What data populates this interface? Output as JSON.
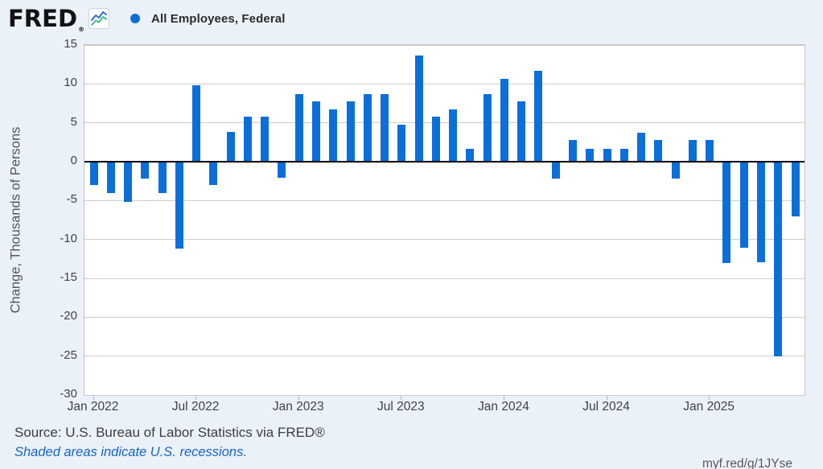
{
  "header": {
    "logo_text": "FRED",
    "logo_reg": "®",
    "legend_label": "All Employees, Federal"
  },
  "colors": {
    "series_blue": "#0c6fd9",
    "background": "#ebf1f9",
    "icon_line_blue": "#2a6fd4",
    "icon_line_green": "#44b789"
  },
  "chart_data": {
    "type": "bar",
    "title": "All Employees, Federal",
    "ylabel": "Change, Thousands of Persons",
    "ylim": [
      -30,
      15
    ],
    "yticks": [
      15,
      10,
      5,
      0,
      -5,
      -10,
      -15,
      -20,
      -25,
      -30
    ],
    "xticks": [
      "Jan 2022",
      "Jul 2022",
      "Jan 2023",
      "Jul 2023",
      "Jan 2024",
      "Jul 2024",
      "Jan 2025"
    ],
    "grid": true,
    "legend_position": "top",
    "bar_color": "#0c6fd9",
    "x": [
      "Jan 2022",
      "Feb 2022",
      "Mar 2022",
      "Apr 2022",
      "May 2022",
      "Jun 2022",
      "Jul 2022",
      "Aug 2022",
      "Sep 2022",
      "Oct 2022",
      "Nov 2022",
      "Dec 2022",
      "Jan 2023",
      "Feb 2023",
      "Mar 2023",
      "Apr 2023",
      "May 2023",
      "Jun 2023",
      "Jul 2023",
      "Aug 2023",
      "Sep 2023",
      "Oct 2023",
      "Nov 2023",
      "Dec 2023",
      "Jan 2024",
      "Feb 2024",
      "Mar 2024",
      "Apr 2024",
      "May 2024",
      "Jun 2024",
      "Jul 2024",
      "Aug 2024",
      "Sep 2024",
      "Oct 2024",
      "Nov 2024",
      "Dec 2024",
      "Jan 2025",
      "Feb 2025",
      "Mar 2025",
      "Apr 2025",
      "May 2025",
      "Jun 2025"
    ],
    "values": [
      -3.0,
      -4.0,
      -5.2,
      -2.2,
      -4.0,
      -11.2,
      9.8,
      -3.0,
      3.8,
      5.8,
      5.8,
      -2.1,
      8.7,
      7.8,
      6.7,
      7.8,
      8.7,
      8.7,
      4.8,
      13.7,
      5.8,
      6.7,
      1.7,
      8.7,
      10.7,
      7.8,
      11.7,
      -2.2,
      2.8,
      1.7,
      1.7,
      1.7,
      3.7,
      2.8,
      -2.2,
      2.8,
      2.8,
      -13.0,
      -11.1,
      -12.9,
      -25.0,
      -7.0
    ]
  },
  "footer": {
    "source": "Source: U.S. Bureau of Labor Statistics via FRED®",
    "recession_note": "Shaded areas indicate U.S. recessions.",
    "shortlink": "myf.red/g/1JYse"
  }
}
